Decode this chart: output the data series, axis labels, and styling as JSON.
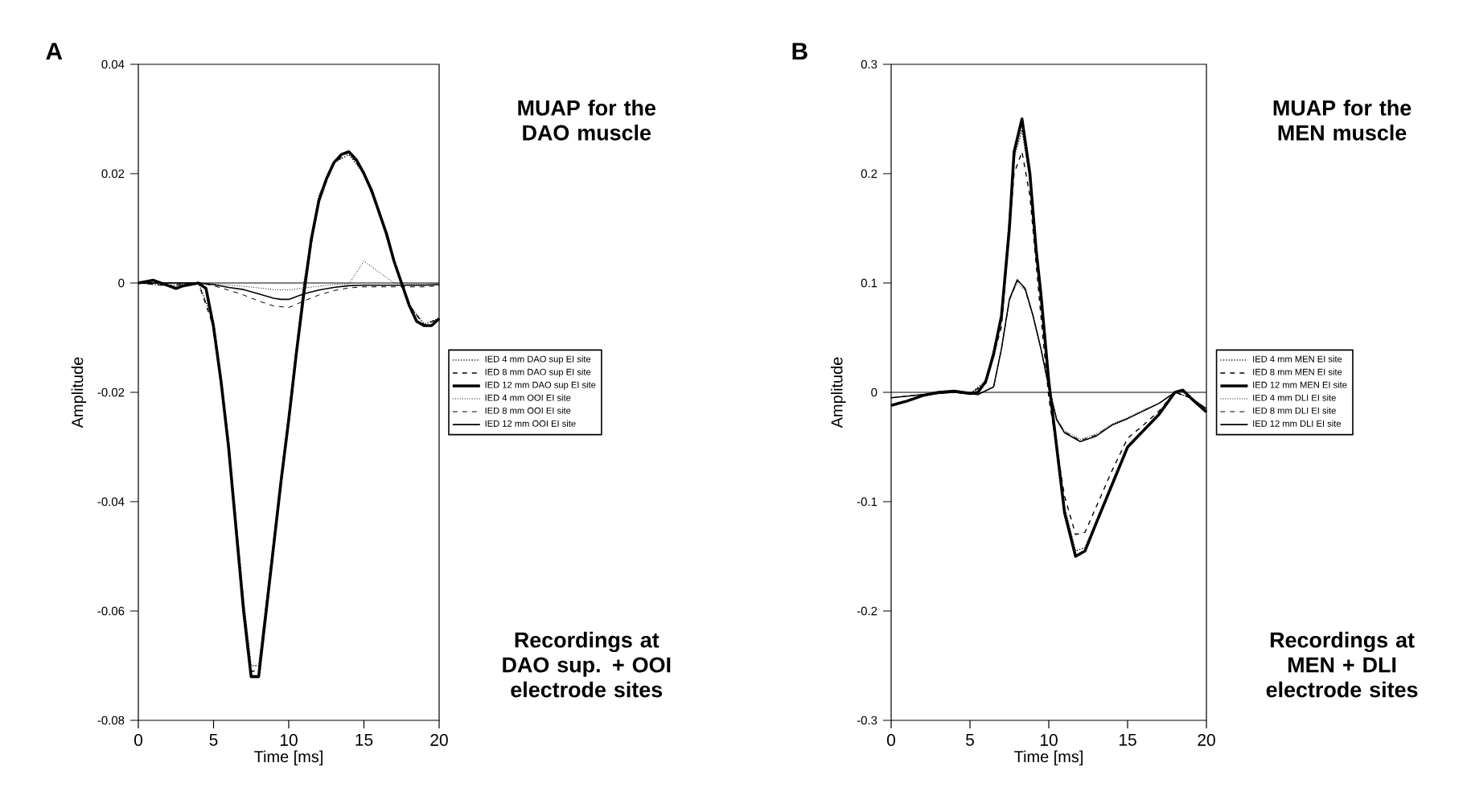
{
  "chart_data": [
    {
      "type": "line",
      "title": "A",
      "xlabel": "Time [ms]",
      "ylabel": "Amplitude",
      "annotations": [
        "MUAP for the DAO muscle",
        "Recordings at DAO sup. + OOI electrode sites"
      ],
      "xlim": [
        0,
        20
      ],
      "ylim": [
        -0.08,
        0.04
      ],
      "xticks": [
        0,
        5,
        10,
        15,
        20
      ],
      "yticks": [
        0.04,
        0.02,
        0,
        -0.02,
        -0.04,
        -0.06,
        -0.08
      ],
      "legend": "right",
      "ref_lines": [
        {
          "axis": "y",
          "value": 0
        }
      ],
      "series": [
        {
          "name": "IED 4 mm DAO sup  EI  site",
          "color": "#000000",
          "line_style": "dotted",
          "x": [
            0,
            2,
            4,
            5,
            6,
            7,
            7.5,
            8,
            9,
            10,
            11,
            12,
            13,
            14,
            15,
            16,
            17,
            18,
            19,
            20
          ],
          "values": [
            0,
            -0.0005,
            0,
            -0.007,
            -0.029,
            -0.058,
            -0.07,
            -0.07,
            -0.047,
            -0.024,
            0,
            0.016,
            0.022,
            0.0235,
            0.02,
            0.013,
            0.004,
            -0.004,
            -0.0075,
            -0.0065
          ]
        },
        {
          "name": "IED 8 mm DAO sup  EI  site",
          "color": "#000000",
          "line_style": "dashed",
          "x": [
            0,
            2,
            4,
            5,
            6,
            7,
            7.5,
            8,
            9,
            10,
            11,
            12,
            13,
            14,
            15,
            16,
            17,
            18,
            19,
            20
          ],
          "values": [
            0,
            -0.0005,
            0,
            -0.008,
            -0.03,
            -0.059,
            -0.071,
            -0.071,
            -0.048,
            -0.025,
            -0.001,
            0.015,
            0.022,
            0.024,
            0.02,
            0.013,
            0.004,
            -0.004,
            -0.0077,
            -0.0065
          ]
        },
        {
          "name": "IED 12 mm DAO sup  EI  site",
          "color": "#000000",
          "line_style": "solid",
          "x": [
            0,
            1,
            2,
            2.5,
            3,
            4,
            4.5,
            5,
            5.5,
            6,
            6.5,
            7,
            7.5,
            8,
            8.5,
            9,
            9.5,
            10,
            10.5,
            11,
            11.5,
            12,
            12.5,
            13,
            13.5,
            14,
            14.5,
            15,
            15.5,
            16,
            16.5,
            17,
            17.5,
            18,
            18.5,
            19,
            19.5,
            20
          ],
          "values": [
            0,
            0.0005,
            -0.0005,
            -0.001,
            -0.0005,
            0,
            -0.001,
            -0.008,
            -0.018,
            -0.03,
            -0.045,
            -0.06,
            -0.072,
            -0.072,
            -0.06,
            -0.048,
            -0.036,
            -0.025,
            -0.013,
            -0.002,
            0.008,
            0.015,
            0.019,
            0.022,
            0.0235,
            0.024,
            0.0225,
            0.02,
            0.017,
            0.013,
            0.009,
            0.004,
            0,
            -0.004,
            -0.007,
            -0.0078,
            -0.0078,
            -0.0065
          ]
        },
        {
          "name": "IED 4 mm OOI EI  site",
          "color": "#000000",
          "line_style": "dotted",
          "x": [
            0,
            2,
            4,
            5,
            6,
            7,
            8,
            9,
            10,
            11,
            12,
            13,
            14,
            15,
            16,
            17,
            18,
            19,
            20
          ],
          "values": [
            0,
            0,
            0,
            -0.0002,
            -0.0004,
            -0.0006,
            -0.0009,
            -0.0012,
            -0.0013,
            -0.0009,
            -0.0006,
            -0.0003,
            -0.0002,
            0.004,
            0.002,
            0,
            -0.0002,
            -0.0002,
            -0.0001
          ]
        },
        {
          "name": "IED 8 mm OOI EI  site",
          "color": "#000000",
          "line_style": "dashed",
          "x": [
            0,
            2,
            4,
            5,
            6,
            7,
            8,
            9,
            10,
            11,
            12,
            13,
            14,
            15,
            16,
            17,
            18,
            19,
            20
          ],
          "values": [
            0,
            0,
            0,
            -0.0005,
            -0.0013,
            -0.0022,
            -0.0033,
            -0.0042,
            -0.0045,
            -0.0033,
            -0.0022,
            -0.0014,
            -0.0009,
            -0.0007,
            -0.0007,
            -0.0007,
            -0.0007,
            -0.0007,
            -0.0005
          ]
        },
        {
          "name": "IED 12 mm OOI EI  site",
          "color": "#000000",
          "line_style": "solid",
          "x": [
            0,
            2,
            4,
            5,
            6,
            7,
            8,
            9,
            9.5,
            10,
            11,
            12,
            13,
            14,
            15,
            16,
            17,
            18,
            19,
            20
          ],
          "values": [
            0,
            0,
            0,
            -0.0003,
            -0.0008,
            -0.0012,
            -0.002,
            -0.0028,
            -0.003,
            -0.003,
            -0.002,
            -0.0013,
            -0.0008,
            -0.0005,
            -0.0004,
            -0.0004,
            -0.0004,
            -0.0004,
            -0.0004,
            -0.0003
          ]
        }
      ]
    },
    {
      "type": "line",
      "title": "B",
      "xlabel": "Time [ms]",
      "ylabel": "Amplitude",
      "annotations": [
        "MUAP for the MEN muscle",
        "Recordings at MEN + DLI electrode sites"
      ],
      "xlim": [
        0,
        20
      ],
      "ylim": [
        -0.3,
        0.3
      ],
      "xticks": [
        0,
        5,
        10,
        15,
        20
      ],
      "yticks": [
        0.3,
        0.2,
        0.1,
        0,
        -0.1,
        -0.2,
        -0.3
      ],
      "legend": "right",
      "ref_lines": [
        {
          "axis": "y",
          "value": 0
        }
      ],
      "series": [
        {
          "name": "IED 4 mm MEN EI  site",
          "color": "#000000",
          "line_style": "dotted",
          "x": [
            0,
            2,
            4,
            5,
            6,
            7,
            7.8,
            8.3,
            8.8,
            9.5,
            10,
            11,
            11.7,
            12.3,
            13,
            14,
            15,
            16,
            17,
            18,
            19,
            20
          ],
          "values": [
            -0.012,
            -0.003,
            0.001,
            -0.001,
            0.01,
            0.068,
            0.215,
            0.24,
            0.195,
            0.085,
            0.008,
            -0.105,
            -0.145,
            -0.142,
            -0.118,
            -0.083,
            -0.05,
            -0.035,
            -0.02,
            0,
            -0.005,
            -0.018
          ]
        },
        {
          "name": "IED 8 mm MEN EI  site",
          "color": "#000000",
          "line_style": "dashed",
          "x": [
            0,
            2,
            4,
            5,
            6,
            7,
            7.8,
            8.3,
            8.8,
            9.5,
            10,
            11,
            11.7,
            12.3,
            13,
            14,
            15,
            16,
            17,
            18,
            19,
            20
          ],
          "values": [
            -0.012,
            -0.003,
            0.001,
            -0.001,
            0.008,
            0.06,
            0.2,
            0.22,
            0.18,
            0.07,
            -0.005,
            -0.095,
            -0.13,
            -0.128,
            -0.105,
            -0.072,
            -0.042,
            -0.03,
            -0.017,
            0,
            -0.005,
            -0.018
          ]
        },
        {
          "name": "IED 12 mm MEN EI  site",
          "color": "#000000",
          "line_style": "solid",
          "x": [
            0,
            1,
            2,
            3,
            4,
            5,
            5.5,
            6,
            6.5,
            7,
            7.5,
            7.8,
            8.3,
            8.8,
            9.2,
            9.5,
            10,
            10.5,
            11,
            11.7,
            12.3,
            13,
            14,
            15,
            16,
            17,
            18,
            18.5,
            19,
            20
          ],
          "values": [
            -0.012,
            -0.008,
            -0.003,
            0,
            0.001,
            -0.001,
            0,
            0.01,
            0.035,
            0.07,
            0.15,
            0.22,
            0.25,
            0.2,
            0.13,
            0.09,
            0.01,
            -0.05,
            -0.11,
            -0.15,
            -0.145,
            -0.12,
            -0.085,
            -0.05,
            -0.035,
            -0.02,
            0,
            0.002,
            -0.005,
            -0.018
          ]
        },
        {
          "name": "IED 4 mm DLI EI  site",
          "color": "#000000",
          "line_style": "dotted",
          "x": [
            0,
            2,
            4,
            5.5,
            6.5,
            7,
            7.5,
            8,
            8.5,
            9,
            9.5,
            10,
            10.5,
            11,
            12,
            13,
            14,
            15,
            16,
            17,
            18,
            19,
            20
          ],
          "values": [
            -0.005,
            -0.002,
            0,
            -0.002,
            0.005,
            0.04,
            0.085,
            0.1,
            0.093,
            0.07,
            0.04,
            0.005,
            -0.024,
            -0.035,
            -0.043,
            -0.038,
            -0.029,
            -0.023,
            -0.016,
            -0.01,
            0,
            -0.005,
            -0.015
          ]
        },
        {
          "name": "IED 8 mm DLI EI  site",
          "color": "#000000",
          "line_style": "dashed",
          "x": [
            0,
            2,
            4,
            5.5,
            6.5,
            7,
            7.5,
            8,
            8.5,
            9,
            9.5,
            10,
            10.5,
            11,
            12,
            13,
            14,
            15,
            16,
            17,
            18,
            19,
            20
          ],
          "values": [
            -0.005,
            -0.002,
            0,
            -0.002,
            0.005,
            0.04,
            0.084,
            0.102,
            0.094,
            0.07,
            0.04,
            0.005,
            -0.025,
            -0.036,
            -0.044,
            -0.039,
            -0.03,
            -0.024,
            -0.017,
            -0.01,
            0,
            -0.005,
            -0.015
          ]
        },
        {
          "name": "IED 12 mm DLI EI  site",
          "color": "#000000",
          "line_style": "solid",
          "x": [
            0,
            2,
            4,
            5.5,
            6.5,
            7,
            7.5,
            8,
            8.5,
            9,
            9.5,
            10,
            10.5,
            11,
            12,
            13,
            14,
            15,
            16,
            17,
            18,
            18.5,
            19,
            20
          ],
          "values": [
            -0.005,
            -0.002,
            0,
            -0.002,
            0.005,
            0.04,
            0.085,
            0.103,
            0.095,
            0.07,
            0.04,
            0.005,
            -0.025,
            -0.037,
            -0.045,
            -0.04,
            -0.03,
            -0.024,
            -0.017,
            -0.01,
            0,
            0.002,
            -0.005,
            -0.015
          ]
        }
      ]
    }
  ]
}
